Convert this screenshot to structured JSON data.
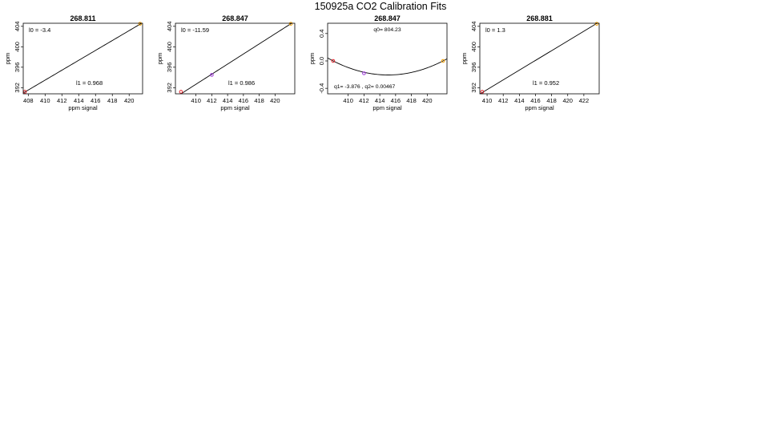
{
  "figure": {
    "title": "150925a   CO2 Calibration Fits"
  },
  "chart_data": [
    {
      "type": "line",
      "title": "268.811",
      "xlabel": "ppm signal",
      "ylabel": "ppm",
      "xlim": [
        407.4,
        421.6
      ],
      "ylim": [
        390.8,
        404.6
      ],
      "xticks": [
        408,
        410,
        412,
        414,
        416,
        418,
        420
      ],
      "yticks": [
        392,
        396,
        400,
        404
      ],
      "fit": {
        "kind": "linear",
        "intercept": -3.4,
        "slope": 0.968
      },
      "points": [
        {
          "x": 407.6,
          "y": 391.2,
          "color": "#e2222a"
        },
        {
          "x": 421.3,
          "y": 404.5,
          "color": "#f5a000"
        }
      ],
      "annotations": [
        {
          "text": "l0 =  -3.4",
          "pos": "top-left"
        },
        {
          "text": "l1 =  0.968",
          "pos": "bottom-right"
        }
      ]
    },
    {
      "type": "line",
      "title": "268.847",
      "xlabel": "ppm signal",
      "ylabel": "ppm",
      "xlim": [
        407.4,
        422.5
      ],
      "ylim": [
        390.8,
        404.6
      ],
      "xticks": [
        410,
        412,
        414,
        416,
        418,
        420
      ],
      "yticks": [
        392,
        396,
        400,
        404
      ],
      "fit": {
        "kind": "linear",
        "intercept": -11.59,
        "slope": 0.986
      },
      "points": [
        {
          "x": 408.1,
          "y": 391.2,
          "color": "#e2222a"
        },
        {
          "x": 412.0,
          "y": 394.5,
          "color": "#9b30d9"
        },
        {
          "x": 422.0,
          "y": 404.5,
          "color": "#f5a000"
        }
      ],
      "annotations": [
        {
          "text": "l0 =  -11.59",
          "pos": "top-left"
        },
        {
          "text": "l1 =  0.986",
          "pos": "bottom-right"
        }
      ]
    },
    {
      "type": "line",
      "title": "268.847",
      "xlabel": "ppm signal",
      "ylabel": "ppm",
      "xlim": [
        407.4,
        422.5
      ],
      "ylim": [
        -0.48,
        0.55
      ],
      "xticks": [
        410,
        412,
        414,
        416,
        418,
        420
      ],
      "yticks": [
        -0.4,
        0.0,
        0.4
      ],
      "fit": {
        "kind": "quadratic",
        "q0": 804.23,
        "q1": -3.876,
        "q2": 0.00467
      },
      "points": [
        {
          "x": 408.1,
          "y": 0.0,
          "color": "#e2222a"
        },
        {
          "x": 412.0,
          "y": -0.18,
          "color": "#9b30d9"
        },
        {
          "x": 422.0,
          "y": 0.0,
          "color": "#f5a000"
        }
      ],
      "annotations": [
        {
          "text": "q0= 804.23",
          "pos": "top-center"
        },
        {
          "text": "q1= -3.876 , q2= 0.00467",
          "pos": "bottom-left"
        }
      ]
    },
    {
      "type": "line",
      "title": "268.881",
      "xlabel": "ppm signal",
      "ylabel": "ppm",
      "xlim": [
        409.1,
        423.9
      ],
      "ylim": [
        390.8,
        404.6
      ],
      "xticks": [
        410,
        412,
        414,
        416,
        418,
        420,
        422
      ],
      "yticks": [
        392,
        396,
        400,
        404
      ],
      "fit": {
        "kind": "linear",
        "intercept": 1.3,
        "slope": 0.952
      },
      "points": [
        {
          "x": 409.4,
          "y": 391.2,
          "color": "#e2222a"
        },
        {
          "x": 423.6,
          "y": 404.5,
          "color": "#f5a000"
        }
      ],
      "annotations": [
        {
          "text": "l0 =  1.3",
          "pos": "top-left"
        },
        {
          "text": "l1 =  0.952",
          "pos": "bottom-right"
        }
      ]
    }
  ]
}
